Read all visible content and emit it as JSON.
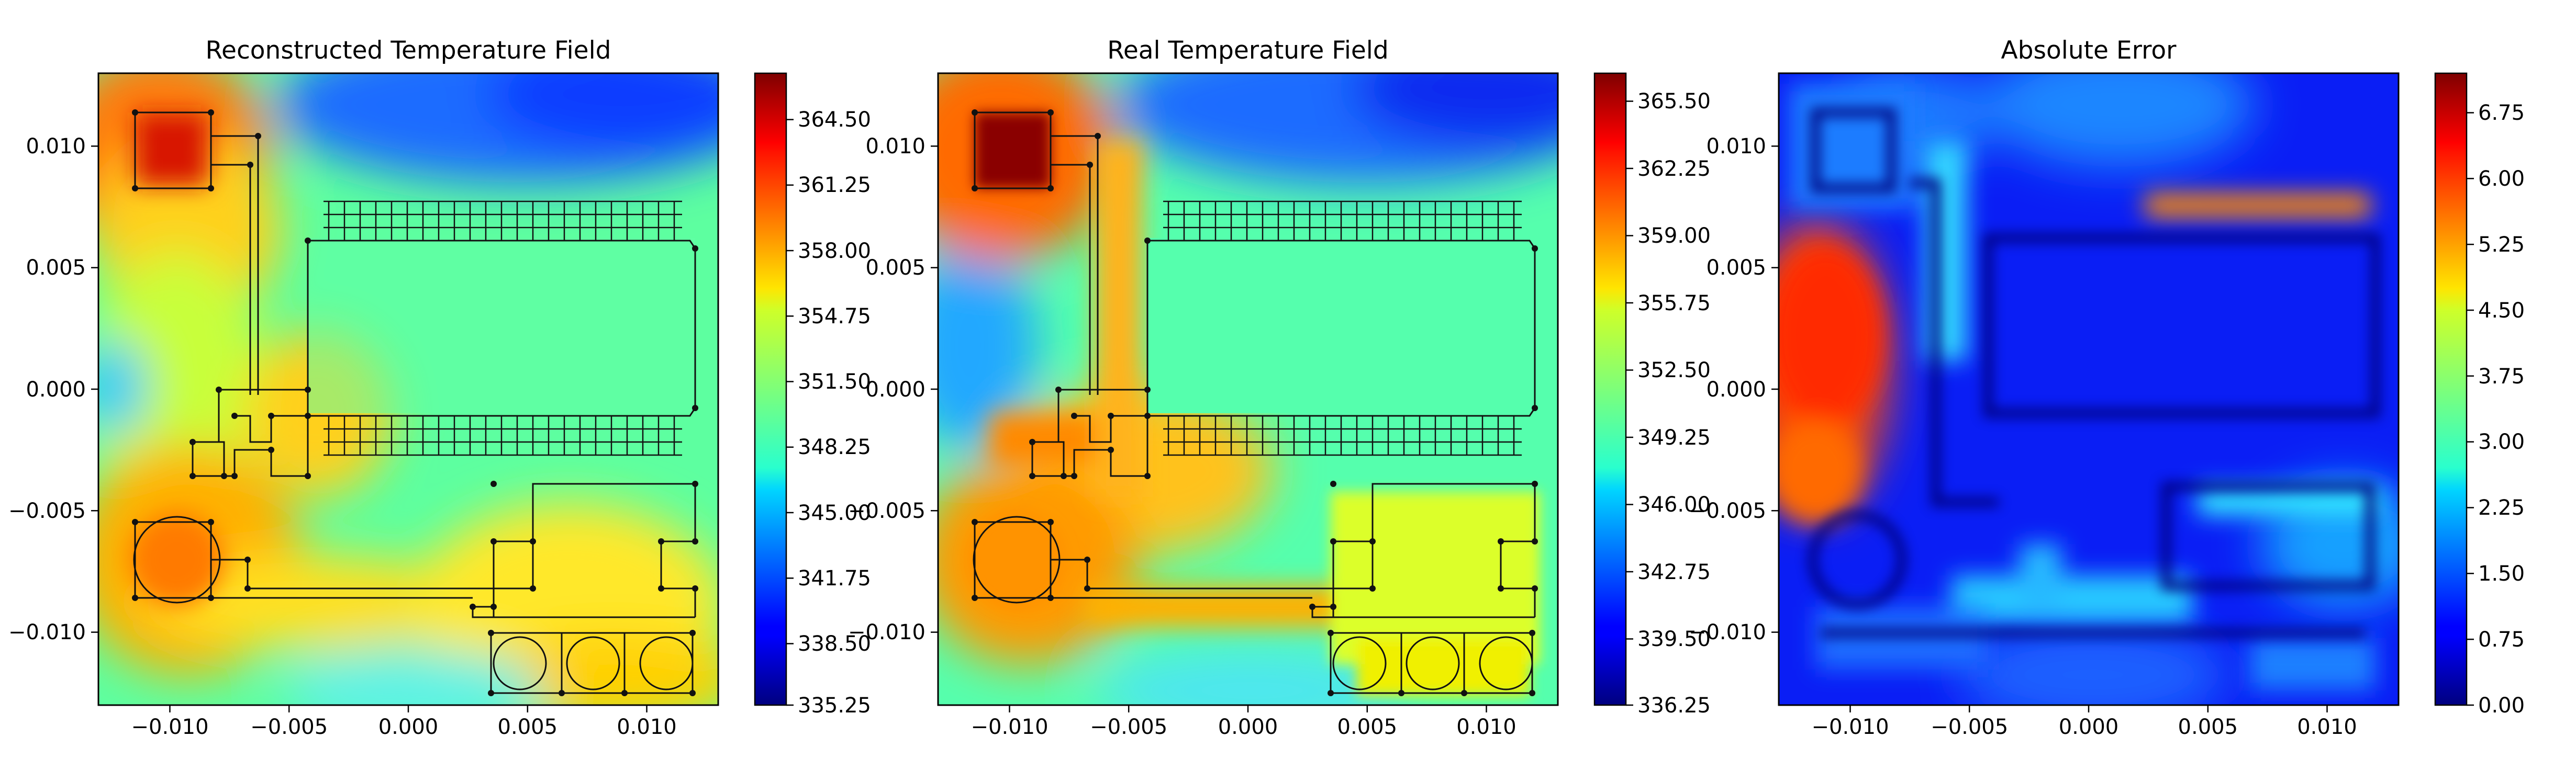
{
  "chart_data": [
    {
      "type": "heatmap",
      "title": "Reconstructed Temperature Field",
      "x_ticks": [
        "−0.010",
        "−0.005",
        "0.000",
        "0.005",
        "0.010"
      ],
      "x_tick_values": [
        -0.01,
        -0.005,
        0.0,
        0.005,
        0.01
      ],
      "y_ticks": [
        "0.010",
        "0.005",
        "0.000",
        "−0.005",
        "−0.010"
      ],
      "y_tick_values": [
        0.01,
        0.005,
        0.0,
        -0.005,
        -0.01
      ],
      "xlim": [
        -0.013,
        0.013
      ],
      "ylim": [
        -0.013,
        0.013
      ],
      "colormap": "jet",
      "colorbar_range": [
        335.25,
        366.6
      ],
      "colorbar_ticks": [
        "364.50",
        "361.25",
        "358.00",
        "354.75",
        "351.50",
        "348.25",
        "345.00",
        "341.75",
        "338.50",
        "335.25"
      ],
      "colorbar_tick_values": [
        364.5,
        361.25,
        358.0,
        354.75,
        351.5,
        348.25,
        345.0,
        341.75,
        338.5,
        335.25
      ]
    },
    {
      "type": "heatmap",
      "title": "Real Temperature Field",
      "x_ticks": [
        "−0.010",
        "−0.005",
        "0.000",
        "0.005",
        "0.010"
      ],
      "x_tick_values": [
        -0.01,
        -0.005,
        0.0,
        0.005,
        0.01
      ],
      "y_ticks": [
        "0.010",
        "0.005",
        "0.000",
        "−0.005",
        "−0.010"
      ],
      "y_tick_values": [
        0.01,
        0.005,
        0.0,
        -0.005,
        -0.01
      ],
      "xlim": [
        -0.013,
        0.013
      ],
      "ylim": [
        -0.013,
        0.013
      ],
      "colormap": "jet",
      "colorbar_range": [
        336.25,
        366.8
      ],
      "colorbar_ticks": [
        "365.50",
        "362.25",
        "359.00",
        "355.75",
        "352.50",
        "349.25",
        "346.00",
        "342.75",
        "339.50",
        "336.25"
      ],
      "colorbar_tick_values": [
        365.5,
        362.25,
        359.0,
        355.75,
        352.5,
        349.25,
        346.0,
        342.75,
        339.5,
        336.25
      ]
    },
    {
      "type": "heatmap",
      "title": "Absolute Error",
      "x_ticks": [
        "−0.010",
        "−0.005",
        "0.000",
        "0.005",
        "0.010"
      ],
      "x_tick_values": [
        -0.01,
        -0.005,
        0.0,
        0.005,
        0.01
      ],
      "y_ticks": [
        "0.010",
        "0.005",
        "0.000",
        "−0.005",
        "−0.010"
      ],
      "y_tick_values": [
        0.01,
        0.005,
        0.0,
        -0.005,
        -0.01
      ],
      "xlim": [
        -0.013,
        0.013
      ],
      "ylim": [
        -0.013,
        0.013
      ],
      "colormap": "jet",
      "colorbar_range": [
        0.0,
        7.2
      ],
      "colorbar_ticks": [
        "6.75",
        "6.00",
        "5.25",
        "4.50",
        "3.75",
        "3.00",
        "2.25",
        "1.50",
        "0.75",
        "0.00"
      ],
      "colorbar_tick_values": [
        6.75,
        6.0,
        5.25,
        4.5,
        3.75,
        3.0,
        2.25,
        1.5,
        0.75,
        0.0
      ]
    }
  ]
}
